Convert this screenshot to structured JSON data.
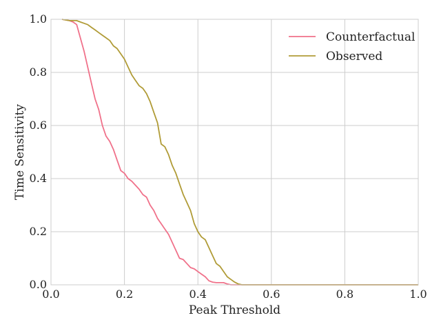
{
  "chart_data": {
    "type": "line",
    "title": "",
    "xlabel": "Peak Threshold",
    "ylabel": "Time Sensitivity",
    "xlim": [
      0.0,
      1.0
    ],
    "ylim": [
      0.0,
      1.0
    ],
    "xticks": [
      "0.0",
      "0.2",
      "0.4",
      "0.6",
      "0.8",
      "1.0"
    ],
    "yticks": [
      "0.0",
      "0.2",
      "0.4",
      "0.6",
      "0.8",
      "1.0"
    ],
    "grid": true,
    "legend_position": "top-right",
    "series": [
      {
        "name": "Counterfactual",
        "color": "#f0718a",
        "x": [
          0.03,
          0.05,
          0.06,
          0.07,
          0.08,
          0.09,
          0.1,
          0.11,
          0.12,
          0.13,
          0.14,
          0.15,
          0.16,
          0.17,
          0.18,
          0.19,
          0.2,
          0.21,
          0.22,
          0.23,
          0.24,
          0.25,
          0.26,
          0.27,
          0.28,
          0.29,
          0.3,
          0.31,
          0.32,
          0.33,
          0.34,
          0.35,
          0.36,
          0.37,
          0.38,
          0.39,
          0.4,
          0.41,
          0.42,
          0.43,
          0.44,
          0.45,
          0.46,
          0.47,
          0.48,
          0.49,
          0.5,
          1.0
        ],
        "y": [
          1.0,
          0.995,
          0.99,
          0.98,
          0.93,
          0.88,
          0.82,
          0.76,
          0.7,
          0.66,
          0.6,
          0.56,
          0.54,
          0.51,
          0.47,
          0.43,
          0.42,
          0.4,
          0.39,
          0.375,
          0.36,
          0.34,
          0.33,
          0.3,
          0.28,
          0.25,
          0.23,
          0.21,
          0.19,
          0.16,
          0.13,
          0.1,
          0.095,
          0.08,
          0.065,
          0.06,
          0.05,
          0.04,
          0.03,
          0.015,
          0.01,
          0.008,
          0.008,
          0.008,
          0.003,
          0.0,
          0.0,
          0.0
        ]
      },
      {
        "name": "Observed",
        "color": "#b09b36",
        "x": [
          0.03,
          0.05,
          0.06,
          0.07,
          0.08,
          0.09,
          0.1,
          0.11,
          0.12,
          0.13,
          0.14,
          0.15,
          0.16,
          0.17,
          0.18,
          0.19,
          0.2,
          0.21,
          0.22,
          0.23,
          0.24,
          0.25,
          0.26,
          0.27,
          0.28,
          0.29,
          0.3,
          0.31,
          0.32,
          0.33,
          0.34,
          0.35,
          0.36,
          0.37,
          0.38,
          0.39,
          0.4,
          0.41,
          0.42,
          0.43,
          0.44,
          0.45,
          0.46,
          0.47,
          0.48,
          0.49,
          0.5,
          0.51,
          0.52,
          1.0
        ],
        "y": [
          1.0,
          0.995,
          0.995,
          0.995,
          0.99,
          0.985,
          0.98,
          0.97,
          0.96,
          0.95,
          0.94,
          0.93,
          0.92,
          0.9,
          0.89,
          0.87,
          0.85,
          0.82,
          0.79,
          0.77,
          0.75,
          0.74,
          0.72,
          0.69,
          0.65,
          0.61,
          0.53,
          0.52,
          0.49,
          0.45,
          0.42,
          0.38,
          0.34,
          0.31,
          0.28,
          0.23,
          0.2,
          0.18,
          0.17,
          0.14,
          0.11,
          0.08,
          0.07,
          0.05,
          0.03,
          0.02,
          0.01,
          0.003,
          0.0,
          0.0
        ]
      }
    ]
  }
}
